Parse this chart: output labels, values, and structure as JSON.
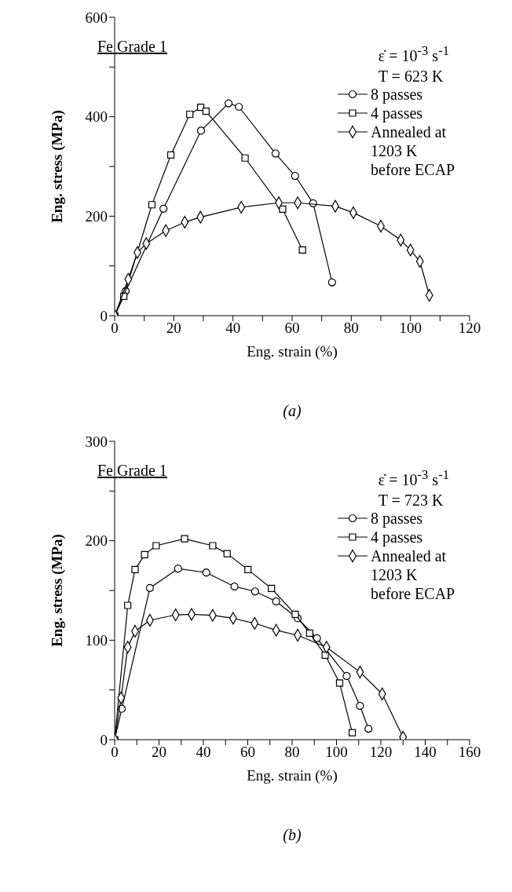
{
  "chart_data": [
    {
      "type": "line",
      "title": "(a)",
      "xlabel": "Eng. strain (%)",
      "ylabel": "Eng. stress (MPa)",
      "annotations": [
        "Fe Grade 1",
        "ε̇ = 10$^{-3}$ s$^{-1}$",
        "T = 623 K"
      ],
      "xlim": [
        0,
        120
      ],
      "xticks": [
        0,
        {
          "value": 10,
          "label": null
        },
        20,
        {
          "value": 30,
          "label": null
        },
        40,
        {
          "value": 50,
          "label": null
        },
        60,
        {
          "value": 70,
          "label": null
        },
        80,
        {
          "value": 90,
          "label": null
        },
        100,
        {
          "value": 110,
          "label": null
        },
        120
      ],
      "ylim": [
        0,
        600
      ],
      "yticks": [
        0,
        {
          "value": 100,
          "label": null
        },
        200,
        {
          "value": 300,
          "label": null
        },
        400,
        {
          "value": 500,
          "label": null
        },
        600
      ],
      "grid": false,
      "legend": "top right",
      "line_style": "solid",
      "series": [
        {
          "name": "8 passes",
          "color": "#000000",
          "marker": "circle",
          "x": [
            0,
            3.7,
            16.5,
            29.2,
            38.5,
            42,
            54.4,
            61,
            67.1,
            73.5
          ],
          "values": [
            0,
            49,
            215,
            372,
            427,
            420,
            326,
            281,
            226,
            67
          ]
        },
        {
          "name": "4 passes",
          "color": "#000000",
          "marker": "square",
          "x": [
            0,
            3.1,
            12.6,
            19,
            25.4,
            29.1,
            30.9,
            44.1,
            56.8,
            63.5
          ],
          "values": [
            0,
            39,
            223,
            323,
            405,
            419,
            411,
            317,
            214,
            132
          ]
        },
        {
          "name": "Annealed at 1203 K before ECAP",
          "color": "#000000",
          "marker": "diamond",
          "x": [
            0,
            4.6,
            7.7,
            10.7,
            17.3,
            23.7,
            29,
            42.8,
            55.5,
            61.9,
            74.6,
            80.7,
            90,
            96.7,
            100,
            103.2,
            106.4
          ],
          "values": [
            0,
            73,
            127,
            145,
            171,
            188,
            198,
            218,
            227,
            227,
            220,
            207,
            180,
            152,
            132,
            109,
            41
          ]
        }
      ]
    },
    {
      "type": "line",
      "title": "(b)",
      "xlabel": "Eng. strain (%)",
      "ylabel": "Eng. stress (MPa)",
      "annotations": [
        "Fe Grade 1",
        "ε̇ = 10$^{-3}$ s$^{-1}$",
        "T = 723 K"
      ],
      "xlim": [
        0,
        160
      ],
      "xticks": [
        0,
        {
          "value": 10,
          "label": null
        },
        20,
        {
          "value": 30,
          "label": null
        },
        40,
        {
          "value": 50,
          "label": null
        },
        60,
        {
          "value": 70,
          "label": null
        },
        80,
        {
          "value": 90,
          "label": null
        },
        100,
        {
          "value": 110,
          "label": null
        },
        120,
        {
          "value": 130,
          "label": null
        },
        140,
        {
          "value": 150,
          "label": null
        },
        160
      ],
      "ylim": [
        0,
        300
      ],
      "yticks": [
        0,
        {
          "value": 50,
          "label": null
        },
        100,
        {
          "value": 150,
          "label": null
        },
        200,
        {
          "value": 250,
          "label": null
        },
        300
      ],
      "grid": false,
      "legend": "top right",
      "line_style": "solid",
      "series": [
        {
          "name": "8 passes",
          "color": "#000000",
          "marker": "circle",
          "x": [
            0,
            3.2,
            15.9,
            28.6,
            41.3,
            54,
            63.3,
            72.8,
            82.5,
            91.2,
            104.6,
            110.6,
            114.4
          ],
          "values": [
            0,
            31,
            152.5,
            172,
            168,
            154,
            149,
            139,
            122,
            102,
            64,
            34,
            11
          ]
        },
        {
          "name": "4 passes",
          "color": "#000000",
          "marker": "square",
          "x": [
            0,
            5.9,
            9.2,
            13.5,
            18.7,
            31.5,
            44.2,
            50.7,
            60.1,
            70.7,
            81.4,
            87.9,
            94.9,
            101.4,
            107.1
          ],
          "values": [
            0,
            135,
            171,
            186,
            195,
            202,
            195,
            187,
            171,
            152,
            126,
            107,
            85,
            57,
            7
          ]
        },
        {
          "name": "Annealed at 1203 K before ECAP",
          "color": "#000000",
          "marker": "diamond",
          "x": [
            0,
            2.9,
            5.9,
            9.2,
            15.9,
            27.5,
            34.7,
            44.2,
            53.4,
            63.1,
            72.8,
            82.5,
            95.5,
            110.6,
            120.6,
            130
          ],
          "values": [
            0,
            42,
            93,
            109,
            120,
            125.5,
            126,
            125,
            122,
            117,
            110,
            105,
            93,
            68,
            46,
            2.5
          ]
        }
      ]
    }
  ]
}
